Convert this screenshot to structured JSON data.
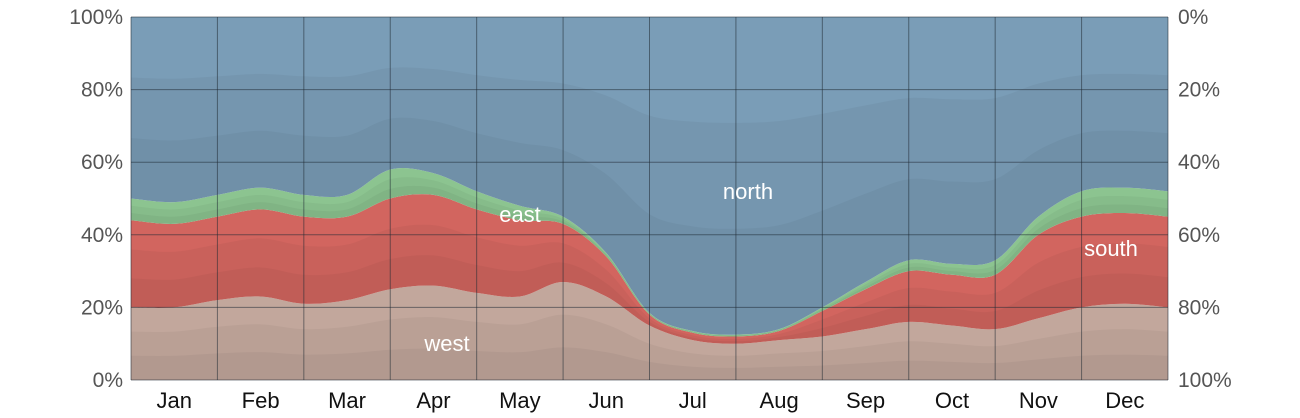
{
  "chart_data": {
    "type": "area",
    "stacked": true,
    "x_unit": "month",
    "categories": [
      "Jan",
      "Feb",
      "Mar",
      "Apr",
      "May",
      "Jun",
      "Jul",
      "Aug",
      "Sep",
      "Oct",
      "Nov",
      "Dec"
    ],
    "x": [
      0,
      0.5,
      1,
      1.5,
      2,
      2.5,
      3,
      3.5,
      4,
      4.5,
      5,
      5.5,
      6,
      6.5,
      7,
      7.5,
      8,
      8.5,
      9,
      9.5,
      10,
      10.5,
      11,
      11.5,
      12
    ],
    "left_axis_ticks": [
      "0%",
      "20%",
      "40%",
      "60%",
      "80%",
      "100%"
    ],
    "right_axis_ticks": [
      "100%",
      "80%",
      "60%",
      "40%",
      "20%",
      "0%"
    ],
    "ylim": [
      0,
      100
    ],
    "grid": true,
    "band_labels": {
      "west": "west",
      "south": "south",
      "east": "east",
      "north": "north"
    },
    "series": [
      {
        "name": "west",
        "color": "#c2a79c",
        "values": [
          20,
          20,
          22,
          23,
          21,
          22,
          25,
          26,
          24,
          23,
          27,
          23,
          15,
          11,
          10,
          11,
          12,
          14,
          16,
          15,
          14,
          17,
          20,
          21,
          20
        ]
      },
      {
        "name": "south",
        "color": "#d2655f",
        "values": [
          24,
          23,
          23,
          24,
          24,
          23,
          25,
          25,
          23,
          21,
          16,
          11,
          3,
          2,
          2,
          2.5,
          7,
          11,
          14,
          14,
          15,
          23,
          25,
          25,
          25
        ]
      },
      {
        "name": "east",
        "color": "#8cc490",
        "values": [
          6,
          6,
          6,
          6,
          6,
          6,
          8,
          6,
          5,
          4,
          2,
          1,
          0.5,
          0.5,
          0.5,
          0.5,
          1,
          2,
          3,
          3,
          4,
          5,
          7,
          7,
          7
        ]
      },
      {
        "name": "north",
        "color": "#7a9db7",
        "values": [
          50,
          51,
          49,
          47,
          49,
          49,
          42,
          43,
          48,
          52,
          55,
          65,
          81.5,
          86.5,
          87.5,
          86,
          80,
          73,
          67,
          68,
          67,
          55,
          48,
          47,
          48
        ]
      }
    ]
  }
}
